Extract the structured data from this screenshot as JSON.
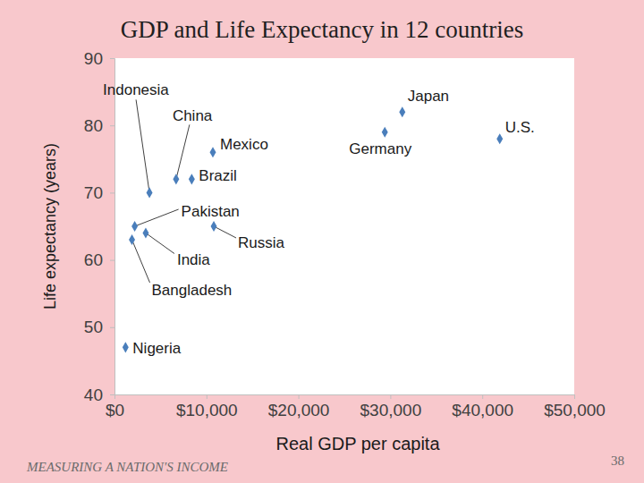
{
  "chart_data": {
    "type": "scatter",
    "title": "GDP and Life Expectancy in 12 countries",
    "x_label": "Real GDP per capita",
    "y_label": "Life expectancy (years)",
    "footer": "MEASURING A NATION'S INCOME",
    "page_number": "38",
    "labels": [
      "Japan",
      "Germany",
      "U.S.",
      "Mexico",
      "China",
      "Brazil",
      "Indonesia",
      "Russia",
      "Pakistan",
      "India",
      "Bangladesh",
      "Nigeria"
    ],
    "x": [
      31300,
      29400,
      41900,
      10700,
      6700,
      8400,
      3800,
      10800,
      2200,
      3400,
      1900,
      1200
    ],
    "values": [
      82,
      79,
      78,
      76,
      72,
      72,
      70,
      65,
      65,
      64,
      63,
      47
    ],
    "color": "#4a7ebb",
    "marker": "diamond",
    "xlim": [
      0,
      50000
    ],
    "xticks": [
      {
        "value": 0,
        "label": "$0"
      },
      {
        "value": 10000,
        "label": "$10,000"
      },
      {
        "value": 20000,
        "label": "$20,000"
      },
      {
        "value": 30000,
        "label": "$30,000"
      },
      {
        "value": 40000,
        "label": "$40,000"
      },
      {
        "value": 50000,
        "label": "$50,000"
      }
    ],
    "ylim": [
      40,
      90
    ],
    "yticks": [
      40,
      50,
      60,
      70,
      80,
      90
    ],
    "grid": false
  }
}
